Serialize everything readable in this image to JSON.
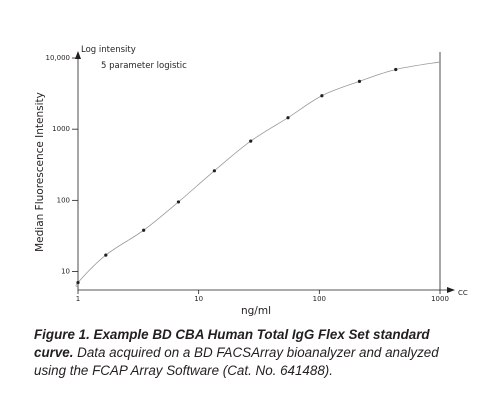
{
  "chart_data": {
    "type": "scatter",
    "annotation_log": "Log intensity",
    "annotation_fit": "5 parameter logistic",
    "xlabel": "ng/ml",
    "ylabel": "Median Fluorescence Intensity",
    "x_axis_end_label": "CC",
    "x_scale": "log",
    "y_scale": "log",
    "xlim": [
      1,
      1000
    ],
    "ylim": [
      5.5,
      10000
    ],
    "x_ticks": [
      1,
      10,
      100,
      1000
    ],
    "x_tick_labels": [
      "1",
      "10",
      "100",
      "1000"
    ],
    "y_ticks": [
      10,
      100,
      1000,
      10000
    ],
    "y_tick_labels": [
      "10",
      "100",
      "1000",
      "10,000"
    ],
    "grid": false,
    "fit_curve": "5 parameter logistic",
    "points": [
      {
        "x": 1.0,
        "y": 7
      },
      {
        "x": 1.7,
        "y": 17
      },
      {
        "x": 3.5,
        "y": 38
      },
      {
        "x": 6.8,
        "y": 95
      },
      {
        "x": 13.5,
        "y": 260
      },
      {
        "x": 27,
        "y": 680
      },
      {
        "x": 55,
        "y": 1450
      },
      {
        "x": 105,
        "y": 2950
      },
      {
        "x": 215,
        "y": 4700
      },
      {
        "x": 430,
        "y": 6900
      }
    ]
  },
  "caption": {
    "title": "Figure 1. Example BD CBA Human Total IgG Flex Set standard curve.",
    "body": " Data acquired on a BD FACSArray bioanalyzer and analyzed using the FCAP Array Software (Cat. No. 641488)."
  }
}
